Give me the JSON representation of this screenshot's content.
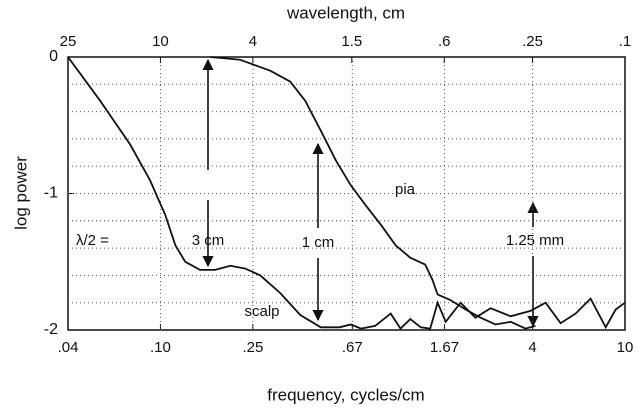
{
  "chart_data": {
    "type": "line",
    "xlabel": "frequency, cycles/cm",
    "ylabel": "log power",
    "x2label": "wavelength, cm",
    "xscale": "log",
    "xlim": [
      0.04,
      10
    ],
    "xticks": [
      {
        "value": 0.04,
        "label": ".04"
      },
      {
        "value": 0.1,
        "label": ".10"
      },
      {
        "value": 0.25,
        "label": ".25"
      },
      {
        "value": 0.67,
        "label": ".67"
      },
      1.67,
      4,
      10
    ],
    "x2lim": [
      25,
      0.1
    ],
    "x2ticks": [
      25,
      10,
      4,
      1.5,
      {
        "value": 0.6,
        "label": ".6"
      },
      {
        "value": 0.25,
        "label": ".25"
      },
      {
        "value": 0.1,
        "label": ".1"
      }
    ],
    "ylim": [
      -2,
      0
    ],
    "yticks": [
      0,
      -1,
      -2
    ],
    "minor_yticks": [
      -0.2,
      -0.4,
      -0.6,
      -0.8,
      -1.2,
      -1.4,
      -1.6,
      -1.8
    ],
    "grid": true,
    "annotations": [
      "λ/2 =",
      "3 cm",
      "1 cm",
      "1.25 mm"
    ],
    "series": [
      {
        "name": "scalp",
        "color": "#111111",
        "x": [
          0.04,
          0.055,
          0.074,
          0.09,
          0.105,
          0.116,
          0.128,
          0.148,
          0.172,
          0.2,
          0.232,
          0.269,
          0.328,
          0.4,
          0.49,
          0.59,
          0.66,
          0.73,
          0.84,
          0.98,
          1.08,
          1.19,
          1.32,
          1.45,
          1.56,
          1.69,
          1.96,
          2.27,
          2.64,
          3.22,
          3.92,
          4.55,
          5.28,
          6.13,
          7.11,
          8.26,
          9.12,
          10
        ],
        "values": [
          0,
          -0.32,
          -0.64,
          -0.9,
          -1.16,
          -1.38,
          -1.5,
          -1.56,
          -1.56,
          -1.53,
          -1.55,
          -1.6,
          -1.73,
          -1.89,
          -1.98,
          -1.98,
          -1.96,
          -1.99,
          -1.97,
          -1.88,
          -1.99,
          -1.92,
          -1.98,
          -1.99,
          -1.8,
          -1.94,
          -1.8,
          -1.91,
          -1.84,
          -1.9,
          -1.86,
          -1.8,
          -1.95,
          -1.88,
          -1.77,
          -1.98,
          -1.85,
          -1.8
        ]
      },
      {
        "name": "pia",
        "color": "#111111",
        "x": [
          0.164,
          0.22,
          0.297,
          0.362,
          0.42,
          0.49,
          0.57,
          0.66,
          0.76,
          0.89,
          1.03,
          1.19,
          1.38,
          1.48,
          1.56,
          1.77,
          2.06,
          2.39,
          2.77,
          3.22,
          3.73,
          4.12
        ],
        "values": [
          0,
          -0.02,
          -0.1,
          -0.18,
          -0.32,
          -0.54,
          -0.76,
          -0.94,
          -1.08,
          -1.23,
          -1.38,
          -1.47,
          -1.52,
          -1.63,
          -1.74,
          -1.78,
          -1.85,
          -1.91,
          -1.96,
          -1.94,
          -1.99,
          -1.97
        ]
      }
    ]
  }
}
